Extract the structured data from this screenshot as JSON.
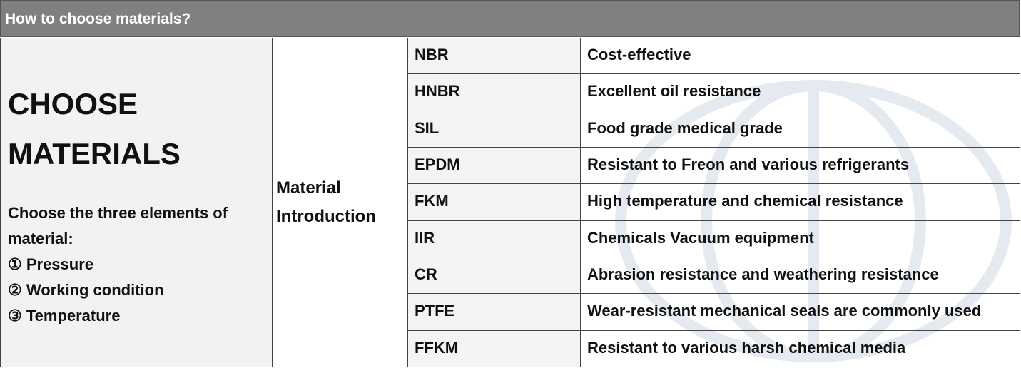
{
  "header": {
    "title": "How to choose materials?"
  },
  "intro": {
    "heading_lines": [
      "CHOOSE",
      "MATERIALS"
    ],
    "description_lines": [
      "Choose the three elements of",
      "material:",
      "① Pressure",
      "② Working condition",
      "③ Temperature"
    ]
  },
  "section_label": "Material Introduction",
  "materials": [
    {
      "name": "NBR",
      "feature": "Cost-effective"
    },
    {
      "name": "HNBR",
      "feature": "Excellent oil resistance"
    },
    {
      "name": "SIL",
      "feature": "Food grade medical grade"
    },
    {
      "name": "EPDM",
      "feature": "Resistant to Freon and various refrigerants"
    },
    {
      "name": "FKM",
      "feature": "High temperature and chemical resistance"
    },
    {
      "name": "IIR",
      "feature": "Chemicals Vacuum equipment"
    },
    {
      "name": "CR",
      "feature": "Abrasion resistance and weathering resistance"
    },
    {
      "name": "PTFE",
      "feature": "Wear-resistant mechanical seals are commonly used"
    },
    {
      "name": "FFKM",
      "feature": "Resistant to various harsh chemical media"
    }
  ]
}
